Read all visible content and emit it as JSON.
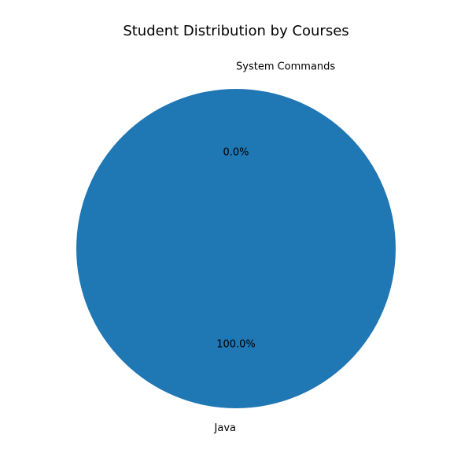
{
  "chart_data": {
    "type": "pie",
    "title": "Student Distribution by Courses",
    "categories": [
      "System Commands",
      "Java"
    ],
    "values": [
      0,
      100
    ],
    "percent_labels": [
      "0.0%",
      "100.0%"
    ],
    "colors": [
      "#ff7f0e",
      "#1f77b4"
    ],
    "start_angle_deg": 90,
    "direction": "counterclockwise"
  }
}
